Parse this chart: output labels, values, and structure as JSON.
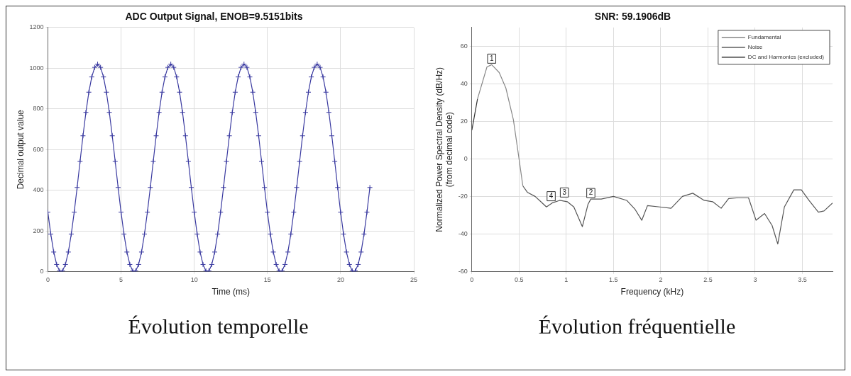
{
  "chart_data": [
    {
      "type": "line",
      "title": "ADC Output Signal, ENOB=9.5151bits",
      "xlabel": "Time (ms)",
      "ylabel": "Decimal output value",
      "xlim": [
        0,
        25
      ],
      "xticks": [
        0,
        5,
        10,
        15,
        20,
        25
      ],
      "ylim": [
        0,
        1200
      ],
      "yticks": [
        0,
        200,
        400,
        600,
        800,
        1000,
        1200
      ],
      "grid": true,
      "legend": false,
      "marker": "cross",
      "annotations": [
        "Évolution temporelle"
      ],
      "series": [
        {
          "color": "#3a3aa0",
          "x": [
            0,
            0.2,
            0.4,
            0.6,
            0.8,
            1,
            1.2,
            1.4,
            1.6,
            1.8,
            2,
            2.2,
            2.4,
            2.6,
            2.8,
            3,
            3.2,
            3.4,
            3.6,
            3.8,
            4,
            4.2,
            4.4,
            4.6,
            4.8,
            5,
            5.2,
            5.4,
            5.6,
            5.8,
            6,
            6.2,
            6.4,
            6.6,
            6.8,
            7,
            7.2,
            7.4,
            7.6,
            7.8,
            8,
            8.2,
            8.4,
            8.6,
            8.8,
            9,
            9.2,
            9.4,
            9.6,
            9.8,
            10,
            10.2,
            10.4,
            10.6,
            10.8,
            11,
            11.2,
            11.4,
            11.6,
            11.8,
            12,
            12.2,
            12.4,
            12.6,
            12.8,
            13,
            13.2,
            13.4,
            13.6,
            13.8,
            14,
            14.2,
            14.4,
            14.6,
            14.8,
            15,
            15.2,
            15.4,
            15.6,
            15.8,
            16,
            16.2,
            16.4,
            16.6,
            16.8,
            17,
            17.2,
            17.4,
            17.6,
            17.8,
            18,
            18.2,
            18.4,
            18.6,
            18.8,
            19,
            19.2,
            19.4,
            19.6,
            19.8,
            20,
            20.2,
            20.4,
            20.6,
            20.8,
            21,
            21.2,
            21.4,
            21.6,
            21.8,
            22
          ],
          "values": [
            293,
            185,
            97,
            36,
            4,
            4,
            36,
            97,
            185,
            293,
            414,
            542,
            668,
            783,
            882,
            957,
            1004,
            1020,
            1004,
            957,
            882,
            783,
            668,
            542,
            414,
            293,
            185,
            97,
            36,
            4,
            4,
            36,
            97,
            185,
            293,
            414,
            542,
            668,
            783,
            882,
            957,
            1004,
            1020,
            1004,
            957,
            882,
            783,
            668,
            542,
            414,
            293,
            185,
            97,
            36,
            4,
            4,
            36,
            97,
            185,
            293,
            414,
            542,
            668,
            783,
            882,
            957,
            1004,
            1020,
            1004,
            957,
            882,
            783,
            668,
            542,
            414,
            293,
            185,
            97,
            36,
            4,
            4,
            36,
            97,
            185,
            293,
            414,
            542,
            668,
            783,
            882,
            957,
            1004,
            1020,
            1004,
            957,
            882,
            783,
            668,
            542,
            414,
            293,
            185,
            97,
            36,
            4,
            4,
            36,
            97,
            185,
            293,
            414
          ]
        }
      ]
    },
    {
      "type": "line",
      "title": "SNR: 59.1906dB",
      "xlabel": "Frequency (kHz)",
      "ylabel": "Normalized Power Spectral Density (dB/Hz)\n(from decimal code)",
      "xlim": [
        0,
        3.82
      ],
      "xticks": [
        0,
        0.5,
        1,
        1.5,
        2,
        2.5,
        3,
        3.5
      ],
      "ylim": [
        -60,
        70
      ],
      "yticks": [
        -60,
        -40,
        -20,
        0,
        20,
        40,
        60
      ],
      "grid": true,
      "legend": "top right",
      "marker": "none",
      "annotations": [
        {
          "text": "1",
          "x": 0.21,
          "y": 50.2
        },
        {
          "text": "4",
          "x": 0.84,
          "y": -23
        },
        {
          "text": "3",
          "x": 0.98,
          "y": -21
        },
        {
          "text": "2",
          "x": 1.26,
          "y": -21.3
        },
        "Évolution fréquentielle"
      ],
      "series": [
        {
          "name": "Fundamental",
          "color": "#888888",
          "x": [
            0.06,
            0.16,
            0.21,
            0.29,
            0.36,
            0.44,
            0.5,
            0.54
          ],
          "values": [
            32,
            49,
            50.2,
            46,
            37.8,
            20.9,
            0,
            -14.3
          ]
        },
        {
          "name": "Noise",
          "color": "#555555",
          "x": [
            0.54,
            0.59,
            0.67,
            0.73,
            0.79,
            0.85,
            0.93,
            1.01,
            1.08,
            1.17,
            1.23,
            1.26,
            1.37,
            1.5,
            1.64,
            1.73,
            1.8,
            1.86,
            1.99,
            2.11,
            2.23,
            2.34,
            2.46,
            2.55,
            2.64,
            2.72,
            2.82,
            2.93,
            3.01,
            3.1,
            3.18,
            3.24,
            3.31,
            3.41,
            3.49,
            3.57,
            3.67,
            3.73,
            3.82
          ],
          "values": [
            -14.3,
            -17.8,
            -19.9,
            -22.7,
            -25.5,
            -23.4,
            -22,
            -22.7,
            -25.5,
            -36,
            -24.1,
            -21.3,
            -21.3,
            -19.9,
            -22,
            -26.9,
            -32.6,
            -24.8,
            -25.5,
            -26.2,
            -19.9,
            -18.2,
            -22,
            -22.7,
            -26.2,
            -21,
            -20.6,
            -20.6,
            -32.6,
            -29,
            -35.4,
            -45.2,
            -25.5,
            -16.4,
            -16.4,
            -22,
            -28.3,
            -27.6,
            -23.4
          ]
        },
        {
          "name": "DC and Harmonics (excluded)",
          "color": "#333333",
          "x": [
            0,
            0.06
          ],
          "values": [
            15.3,
            32
          ]
        }
      ]
    }
  ]
}
